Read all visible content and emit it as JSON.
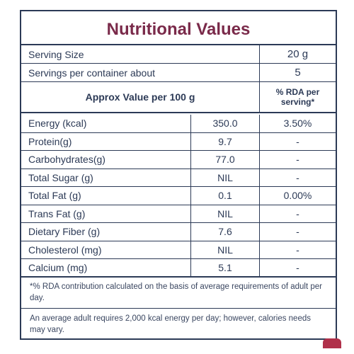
{
  "title": "Nutritional Values",
  "serving": {
    "size_label": "Serving Size",
    "size_value": "20 g",
    "per_container_label": "Servings per container about",
    "per_container_value": "5"
  },
  "header": {
    "approx_label": "Approx Value per 100 g",
    "rda_label": "% RDA per serving*"
  },
  "nutrients": [
    {
      "label": "Energy (kcal)",
      "value": "350.0",
      "rda": "3.50%"
    },
    {
      "label": "Protein(g)",
      "value": "9.7",
      "rda": "-"
    },
    {
      "label": "Carbohydrates(g)",
      "value": "77.0",
      "rda": "-"
    },
    {
      "label": "Total Sugar (g)",
      "value": "NIL",
      "rda": "-"
    },
    {
      "label": "Total Fat (g)",
      "value": "0.1",
      "rda": "0.00%"
    },
    {
      "label": "Trans Fat (g)",
      "value": "NIL",
      "rda": "-"
    },
    {
      "label": "Dietary Fiber (g)",
      "value": "7.6",
      "rda": "-"
    },
    {
      "label": "Cholesterol (mg)",
      "value": "NIL",
      "rda": "-"
    },
    {
      "label": "Calcium (mg)",
      "value": "5.1",
      "rda": "-"
    }
  ],
  "footnotes": {
    "rda_note": "*% RDA contribution calculated on the basis of average requirements of adult per day.",
    "calorie_note": "An average adult requires 2,000 kcal energy per day; however, calories needs may vary."
  },
  "colors": {
    "title": "#7a2a4a",
    "border": "#2c3a56",
    "accent": "#b0304a"
  }
}
